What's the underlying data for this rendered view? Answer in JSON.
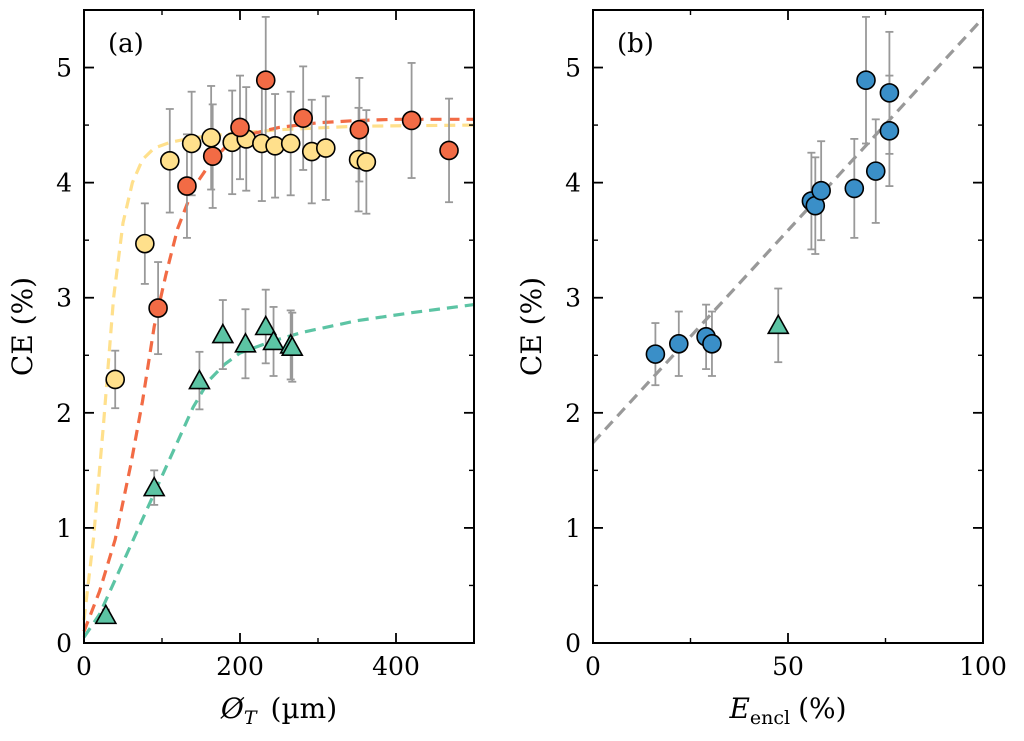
{
  "chart_data": [
    {
      "type": "scatter",
      "panel_label": "(a)",
      "xlabel_symbol": "Ø",
      "xlabel_sub": "T",
      "xlabel_unit": "(µm)",
      "ylabel": "CE (%)",
      "xlim": [
        0,
        500
      ],
      "ylim": [
        0,
        5.5
      ],
      "xticks": [
        0,
        200,
        400
      ],
      "yticks": [
        0,
        1,
        2,
        3,
        4,
        5
      ],
      "series": [
        {
          "marker": "circle",
          "color": "#FFE08C",
          "points": [
            {
              "x": 40,
              "y": 2.29,
              "err": 0.25
            },
            {
              "x": 78,
              "y": 3.47,
              "err": 0.35
            },
            {
              "x": 110,
              "y": 4.19,
              "err": 0.45
            },
            {
              "x": 138,
              "y": 4.34,
              "err": 0.45
            },
            {
              "x": 163,
              "y": 4.39,
              "err": 0.45
            },
            {
              "x": 190,
              "y": 4.35,
              "err": 0.45
            },
            {
              "x": 208,
              "y": 4.38,
              "err": 0.45
            },
            {
              "x": 228,
              "y": 4.34,
              "err": 0.5
            },
            {
              "x": 245,
              "y": 4.32,
              "err": 0.45
            },
            {
              "x": 265,
              "y": 4.34,
              "err": 0.45
            },
            {
              "x": 292,
              "y": 4.27,
              "err": 0.45
            },
            {
              "x": 310,
              "y": 4.3,
              "err": 0.45
            },
            {
              "x": 352,
              "y": 4.2,
              "err": 0.45
            },
            {
              "x": 362,
              "y": 4.18,
              "err": 0.45
            }
          ]
        },
        {
          "marker": "circle",
          "color": "#F26B45",
          "points": [
            {
              "x": 95,
              "y": 2.91,
              "err": 0.4
            },
            {
              "x": 132,
              "y": 3.97,
              "err": 0.45
            },
            {
              "x": 165,
              "y": 4.23,
              "err": 0.45
            },
            {
              "x": 200,
              "y": 4.48,
              "err": 0.45
            },
            {
              "x": 233,
              "y": 4.89,
              "err": 0.55
            },
            {
              "x": 281,
              "y": 4.56,
              "err": 0.45
            },
            {
              "x": 353,
              "y": 4.46,
              "err": 0.45
            },
            {
              "x": 420,
              "y": 4.54,
              "err": 0.5
            },
            {
              "x": 468,
              "y": 4.28,
              "err": 0.45
            }
          ]
        },
        {
          "marker": "triangle",
          "color": "#5CC4A4",
          "points": [
            {
              "x": 28,
              "y": 0.24,
              "err": 0.05
            },
            {
              "x": 90,
              "y": 1.35,
              "err": 0.15
            },
            {
              "x": 148,
              "y": 2.28,
              "err": 0.25
            },
            {
              "x": 178,
              "y": 2.68,
              "err": 0.3
            },
            {
              "x": 207,
              "y": 2.6,
              "err": 0.3
            },
            {
              "x": 233,
              "y": 2.75,
              "err": 0.32
            },
            {
              "x": 243,
              "y": 2.62,
              "err": 0.3
            },
            {
              "x": 265,
              "y": 2.59,
              "err": 0.3
            },
            {
              "x": 267,
              "y": 2.57,
              "err": 0.3
            }
          ]
        }
      ],
      "fit_lines": [
        {
          "color": "#FFE08C",
          "x": [
            0,
            12,
            25,
            38,
            50,
            62,
            75,
            90,
            110,
            140,
            180,
            250,
            350,
            500
          ],
          "y": [
            0.2,
            0.9,
            1.9,
            3.0,
            3.65,
            4.0,
            4.2,
            4.3,
            4.35,
            4.39,
            4.42,
            4.46,
            4.49,
            4.5
          ]
        },
        {
          "color": "#F26B45",
          "x": [
            0,
            20,
            40,
            60,
            75,
            90,
            105,
            120,
            140,
            160,
            180,
            200,
            250,
            300,
            350,
            400,
            500
          ],
          "y": [
            0.1,
            0.45,
            0.9,
            1.55,
            2.1,
            2.75,
            3.2,
            3.6,
            3.95,
            4.15,
            4.3,
            4.4,
            4.48,
            4.52,
            4.54,
            4.55,
            4.55
          ]
        },
        {
          "color": "#5CC4A4",
          "x": [
            0,
            20,
            40,
            60,
            80,
            100,
            120,
            140,
            160,
            180,
            200,
            240,
            280,
            350,
            420,
            500
          ],
          "y": [
            0.05,
            0.25,
            0.55,
            0.85,
            1.15,
            1.45,
            1.75,
            2.05,
            2.28,
            2.42,
            2.52,
            2.62,
            2.7,
            2.8,
            2.87,
            2.94
          ]
        }
      ]
    },
    {
      "type": "scatter",
      "panel_label": "(b)",
      "xlabel_symbol": "E",
      "xlabel_sub": "encl",
      "xlabel_unit": "(%)",
      "ylabel": "CE (%)",
      "xlim": [
        0,
        100
      ],
      "ylim": [
        0,
        5.5
      ],
      "xticks": [
        0,
        50,
        100
      ],
      "yticks": [
        0,
        1,
        2,
        3,
        4,
        5
      ],
      "series": [
        {
          "marker": "circle",
          "color": "#3A8FC8",
          "points": [
            {
              "x": 16,
              "y": 2.51,
              "err": 0.27
            },
            {
              "x": 22,
              "y": 2.6,
              "err": 0.28
            },
            {
              "x": 29,
              "y": 2.66,
              "err": 0.28
            },
            {
              "x": 30.5,
              "y": 2.6,
              "err": 0.28
            },
            {
              "x": 56,
              "y": 3.84,
              "err": 0.42
            },
            {
              "x": 57,
              "y": 3.8,
              "err": 0.42
            },
            {
              "x": 58.5,
              "y": 3.93,
              "err": 0.43
            },
            {
              "x": 67,
              "y": 3.95,
              "err": 0.43
            },
            {
              "x": 70,
              "y": 4.89,
              "err": 0.55
            },
            {
              "x": 72.5,
              "y": 4.1,
              "err": 0.45
            },
            {
              "x": 76,
              "y": 4.78,
              "err": 0.53
            },
            {
              "x": 76,
              "y": 4.45,
              "err": 0.48
            }
          ]
        },
        {
          "marker": "triangle",
          "color": "#5CC4A4",
          "points": [
            {
              "x": 47.5,
              "y": 2.76,
              "err": 0.32
            }
          ]
        }
      ],
      "fit_lines": [
        {
          "color": "#999999",
          "x": [
            0,
            100
          ],
          "y": [
            1.74,
            5.43
          ]
        }
      ]
    }
  ]
}
